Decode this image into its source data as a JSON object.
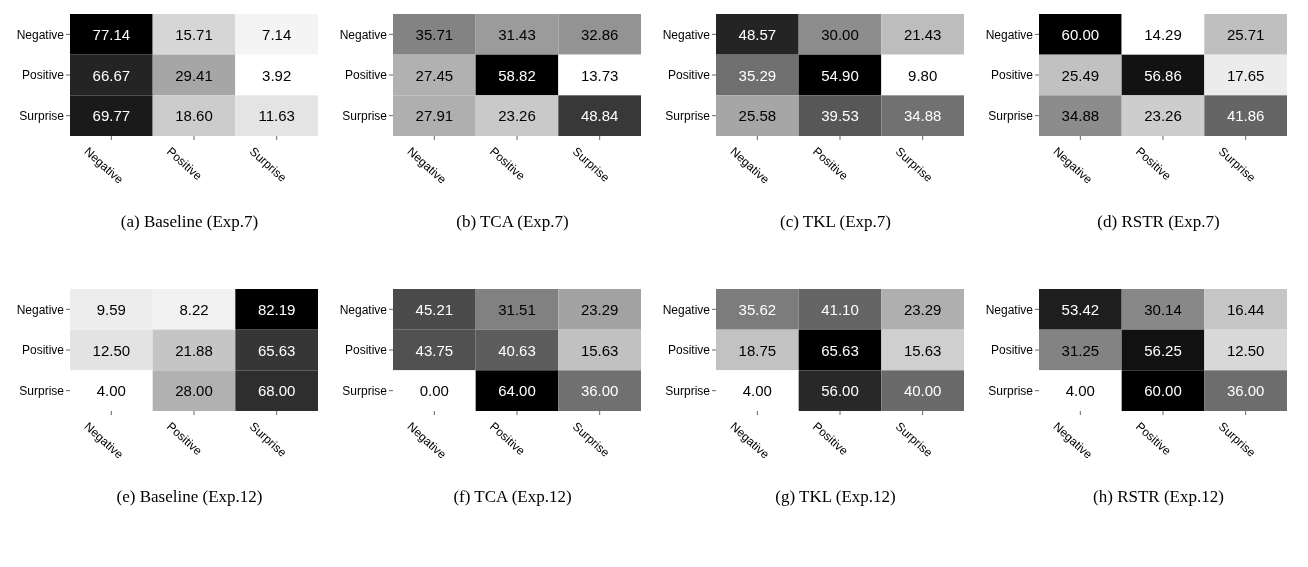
{
  "chart_data": [
    {
      "type": "heatmap",
      "title": "(a) Baseline (Exp.7)",
      "categories": [
        "Negative",
        "Positive",
        "Surprise"
      ],
      "y_categories": [
        "Negative",
        "Positive",
        "Surprise"
      ],
      "cells": [
        [
          77.14,
          15.71,
          7.14
        ],
        [
          66.67,
          29.41,
          3.92
        ],
        [
          69.77,
          18.6,
          11.63
        ]
      ],
      "cell_labels": [
        [
          "77.14",
          "15.71",
          "7.14"
        ],
        [
          "66.67",
          "29.41",
          "3.92"
        ],
        [
          "69.77",
          "18.60",
          "11.63"
        ]
      ]
    },
    {
      "type": "heatmap",
      "title": "(b) TCA (Exp.7)",
      "categories": [
        "Negative",
        "Positive",
        "Surprise"
      ],
      "y_categories": [
        "Negative",
        "Positive",
        "Surprise"
      ],
      "cells": [
        [
          35.71,
          31.43,
          32.86
        ],
        [
          27.45,
          58.82,
          13.73
        ],
        [
          27.91,
          23.26,
          48.84
        ]
      ],
      "cell_labels": [
        [
          "35.71",
          "31.43",
          "32.86"
        ],
        [
          "27.45",
          "58.82",
          "13.73"
        ],
        [
          "27.91",
          "23.26",
          "48.84"
        ]
      ]
    },
    {
      "type": "heatmap",
      "title": "(c) TKL (Exp.7)",
      "categories": [
        "Negative",
        "Positive",
        "Surprise"
      ],
      "y_categories": [
        "Negative",
        "Positive",
        "Surprise"
      ],
      "cells": [
        [
          48.57,
          30,
          21.43
        ],
        [
          35.29,
          54.9,
          9.8
        ],
        [
          25.58,
          39.53,
          34.88
        ]
      ],
      "cell_labels": [
        [
          "48.57",
          "30.00",
          "21.43"
        ],
        [
          "35.29",
          "54.90",
          "9.80"
        ],
        [
          "25.58",
          "39.53",
          "34.88"
        ]
      ]
    },
    {
      "type": "heatmap",
      "title": "(d) RSTR (Exp.7)",
      "categories": [
        "Negative",
        "Positive",
        "Surprise"
      ],
      "y_categories": [
        "Negative",
        "Positive",
        "Surprise"
      ],
      "cells": [
        [
          60,
          14.29,
          25.71
        ],
        [
          25.49,
          56.86,
          17.65
        ],
        [
          34.88,
          23.26,
          41.86
        ]
      ],
      "cell_labels": [
        [
          "60.00",
          "14.29",
          "25.71"
        ],
        [
          "25.49",
          "56.86",
          "17.65"
        ],
        [
          "34.88",
          "23.26",
          "41.86"
        ]
      ]
    },
    {
      "type": "heatmap",
      "title": "(e) Baseline (Exp.12)",
      "categories": [
        "Negative",
        "Positive",
        "Surprise"
      ],
      "y_categories": [
        "Negative",
        "Positive",
        "Surprise"
      ],
      "cells": [
        [
          9.59,
          8.22,
          82.19
        ],
        [
          12.5,
          21.88,
          65.63
        ],
        [
          4,
          28,
          68
        ]
      ],
      "cell_labels": [
        [
          "9.59",
          "8.22",
          "82.19"
        ],
        [
          "12.50",
          "21.88",
          "65.63"
        ],
        [
          "4.00",
          "28.00",
          "68.00"
        ]
      ]
    },
    {
      "type": "heatmap",
      "title": "(f) TCA (Exp.12)",
      "categories": [
        "Negative",
        "Positive",
        "Surprise"
      ],
      "y_categories": [
        "Negative",
        "Positive",
        "Surprise"
      ],
      "cells": [
        [
          45.21,
          31.51,
          23.29
        ],
        [
          43.75,
          40.63,
          15.63
        ],
        [
          0,
          64,
          36
        ]
      ],
      "cell_labels": [
        [
          "45.21",
          "31.51",
          "23.29"
        ],
        [
          "43.75",
          "40.63",
          "15.63"
        ],
        [
          "0.00",
          "64.00",
          "36.00"
        ]
      ]
    },
    {
      "type": "heatmap",
      "title": "(g) TKL (Exp.12)",
      "categories": [
        "Negative",
        "Positive",
        "Surprise"
      ],
      "y_categories": [
        "Negative",
        "Positive",
        "Surprise"
      ],
      "cells": [
        [
          35.62,
          41.1,
          23.29
        ],
        [
          18.75,
          65.63,
          15.63
        ],
        [
          4,
          56,
          40
        ]
      ],
      "cell_labels": [
        [
          "35.62",
          "41.10",
          "23.29"
        ],
        [
          "18.75",
          "65.63",
          "15.63"
        ],
        [
          "4.00",
          "56.00",
          "40.00"
        ]
      ]
    },
    {
      "type": "heatmap",
      "title": "(h) RSTR (Exp.12)",
      "categories": [
        "Negative",
        "Positive",
        "Surprise"
      ],
      "y_categories": [
        "Negative",
        "Positive",
        "Surprise"
      ],
      "cells": [
        [
          53.42,
          30.14,
          16.44
        ],
        [
          31.25,
          56.25,
          12.5
        ],
        [
          4,
          60,
          36
        ]
      ],
      "cell_labels": [
        [
          "53.42",
          "30.14",
          "16.44"
        ],
        [
          "31.25",
          "56.25",
          "12.50"
        ],
        [
          "4.00",
          "60.00",
          "36.00"
        ]
      ]
    }
  ]
}
